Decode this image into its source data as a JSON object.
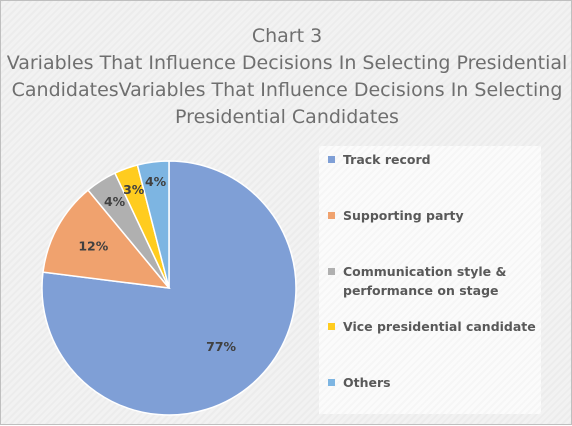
{
  "chart_data": {
    "type": "pie",
    "title_lines": [
      "Chart 3",
      "Variables That Influence Decisions In Selecting Presidential",
      "CandidatesVariables That Influence Decisions In Selecting",
      "Presidential Candidates"
    ],
    "categories": [
      "Track record",
      "Supporting party",
      "Communication style & performance on stage",
      "Vice presidential candidate",
      "Others"
    ],
    "legend_lines": [
      "Track record",
      "Supporting party",
      "Communication style &\nperformance on stage",
      "Vice presidential candidate",
      "Others"
    ],
    "values": [
      77,
      12,
      4,
      3,
      4
    ],
    "labels": [
      "77%",
      "12%",
      "4%",
      "3%",
      "4%"
    ],
    "colors": [
      "#7f9fd6",
      "#f0a26e",
      "#b0b0b0",
      "#ffcc1f",
      "#7db5e2"
    ],
    "legend_position": "right"
  }
}
